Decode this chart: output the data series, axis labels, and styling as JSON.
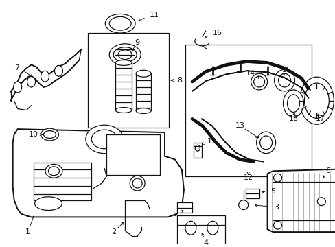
{
  "bg_color": "#ffffff",
  "fig_width": 4.89,
  "fig_height": 3.6,
  "dpi": 100,
  "font_size": 8.0,
  "lc": "#111111",
  "lw": 0.9
}
